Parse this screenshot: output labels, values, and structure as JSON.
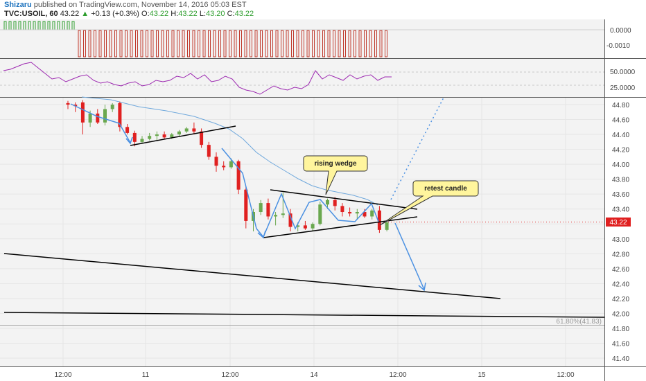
{
  "header": {
    "author": "Shizaru",
    "published_text": "published on TradingView.com, November 14, 2016 05:03 EST",
    "symbol": "TVC:USOIL, 60",
    "last": "43.22",
    "change": "+0.13 (+0.3%)",
    "o_label": "O:",
    "o_value": "43.22",
    "h_label": "H:",
    "h_value": "43.22",
    "l_label": "L:",
    "l_value": "43.20",
    "c_label": "C:",
    "c_value": "43.22"
  },
  "indicator_panel": {
    "y_ticks": [
      "0.0000",
      "-0.0010"
    ]
  },
  "rsi_panel": {
    "y_ticks": [
      "50.0000",
      "25.0000"
    ]
  },
  "price_panel": {
    "y_ticks": [
      "44.80",
      "44.60",
      "44.40",
      "44.20",
      "44.00",
      "43.80",
      "43.60",
      "43.40",
      "43.20",
      "43.00",
      "42.80",
      "42.60",
      "42.40",
      "42.20",
      "42.00",
      "41.80",
      "41.60",
      "41.40"
    ],
    "price_label": "43.22",
    "fib_label": "61.80%(41.83)"
  },
  "x_axis": {
    "ticks": [
      "12:00",
      "11",
      "12:00",
      "14",
      "12:00",
      "15",
      "12:00"
    ]
  },
  "annotations": {
    "rising_wedge": "rising wedge",
    "retest_candle": "retest candle"
  },
  "colors": {
    "bull": "#6aa84f",
    "bear": "#e02020",
    "ma": "#6fa8dc",
    "rsi": "#9c27b0",
    "arrow": "#4a90e2",
    "price_tag": "#e02020",
    "callout_fill": "#fff59d"
  },
  "chart_data": {
    "type": "candlestick",
    "symbol": "TVC:USOIL",
    "interval": "60",
    "ylim": [
      41.3,
      44.87
    ],
    "candles": [
      {
        "o": 44.82,
        "h": 44.85,
        "l": 44.74,
        "c": 44.8
      },
      {
        "o": 44.8,
        "h": 44.83,
        "l": 44.7,
        "c": 44.78
      },
      {
        "o": 44.83,
        "h": 44.86,
        "l": 44.4,
        "c": 44.56
      },
      {
        "o": 44.56,
        "h": 44.72,
        "l": 44.5,
        "c": 44.68
      },
      {
        "o": 44.68,
        "h": 44.74,
        "l": 44.54,
        "c": 44.56
      },
      {
        "o": 44.56,
        "h": 44.8,
        "l": 44.52,
        "c": 44.74
      },
      {
        "o": 44.74,
        "h": 44.82,
        "l": 44.7,
        "c": 44.8
      },
      {
        "o": 44.82,
        "h": 44.84,
        "l": 44.44,
        "c": 44.5
      },
      {
        "o": 44.5,
        "h": 44.54,
        "l": 44.4,
        "c": 44.42
      },
      {
        "o": 44.42,
        "h": 44.45,
        "l": 44.24,
        "c": 44.3
      },
      {
        "o": 44.3,
        "h": 44.38,
        "l": 44.28,
        "c": 44.34
      },
      {
        "o": 44.34,
        "h": 44.42,
        "l": 44.32,
        "c": 44.38
      },
      {
        "o": 44.38,
        "h": 44.44,
        "l": 44.32,
        "c": 44.4
      },
      {
        "o": 44.4,
        "h": 44.44,
        "l": 44.34,
        "c": 44.36
      },
      {
        "o": 44.36,
        "h": 44.42,
        "l": 44.34,
        "c": 44.4
      },
      {
        "o": 44.4,
        "h": 44.46,
        "l": 44.38,
        "c": 44.44
      },
      {
        "o": 44.44,
        "h": 44.5,
        "l": 44.42,
        "c": 44.48
      },
      {
        "o": 44.48,
        "h": 44.56,
        "l": 44.4,
        "c": 44.44
      },
      {
        "o": 44.44,
        "h": 44.48,
        "l": 44.22,
        "c": 44.26
      },
      {
        "o": 44.26,
        "h": 44.3,
        "l": 44.06,
        "c": 44.1
      },
      {
        "o": 44.1,
        "h": 44.16,
        "l": 43.9,
        "c": 43.98
      },
      {
        "o": 43.98,
        "h": 44.04,
        "l": 43.92,
        "c": 43.96
      },
      {
        "o": 43.96,
        "h": 44.08,
        "l": 43.94,
        "c": 44.04
      },
      {
        "o": 44.04,
        "h": 44.06,
        "l": 43.6,
        "c": 43.66
      },
      {
        "o": 43.66,
        "h": 43.7,
        "l": 43.14,
        "c": 43.24
      },
      {
        "o": 43.24,
        "h": 43.4,
        "l": 43.1,
        "c": 43.36
      },
      {
        "o": 43.36,
        "h": 43.52,
        "l": 43.32,
        "c": 43.48
      },
      {
        "o": 43.48,
        "h": 43.54,
        "l": 43.26,
        "c": 43.3
      },
      {
        "o": 43.3,
        "h": 43.36,
        "l": 43.18,
        "c": 43.32
      },
      {
        "o": 43.32,
        "h": 43.62,
        "l": 43.28,
        "c": 43.34
      },
      {
        "o": 43.34,
        "h": 43.4,
        "l": 43.1,
        "c": 43.16
      },
      {
        "o": 43.16,
        "h": 43.22,
        "l": 43.1,
        "c": 43.18
      },
      {
        "o": 43.18,
        "h": 43.24,
        "l": 43.12,
        "c": 43.14
      },
      {
        "o": 43.14,
        "h": 43.22,
        "l": 43.1,
        "c": 43.2
      },
      {
        "o": 43.2,
        "h": 43.5,
        "l": 43.18,
        "c": 43.46
      },
      {
        "o": 43.46,
        "h": 43.54,
        "l": 43.4,
        "c": 43.52
      },
      {
        "o": 43.52,
        "h": 43.56,
        "l": 43.38,
        "c": 43.44
      },
      {
        "o": 43.44,
        "h": 43.48,
        "l": 43.3,
        "c": 43.36
      },
      {
        "o": 43.36,
        "h": 43.42,
        "l": 43.3,
        "c": 43.34
      },
      {
        "o": 43.34,
        "h": 43.4,
        "l": 43.26,
        "c": 43.36
      },
      {
        "o": 43.36,
        "h": 43.4,
        "l": 43.28,
        "c": 43.3
      },
      {
        "o": 43.3,
        "h": 43.4,
        "l": 43.26,
        "c": 43.38
      },
      {
        "o": 43.38,
        "h": 43.44,
        "l": 43.08,
        "c": 43.12
      },
      {
        "o": 43.12,
        "h": 43.24,
        "l": 43.1,
        "c": 43.22
      }
    ]
  }
}
